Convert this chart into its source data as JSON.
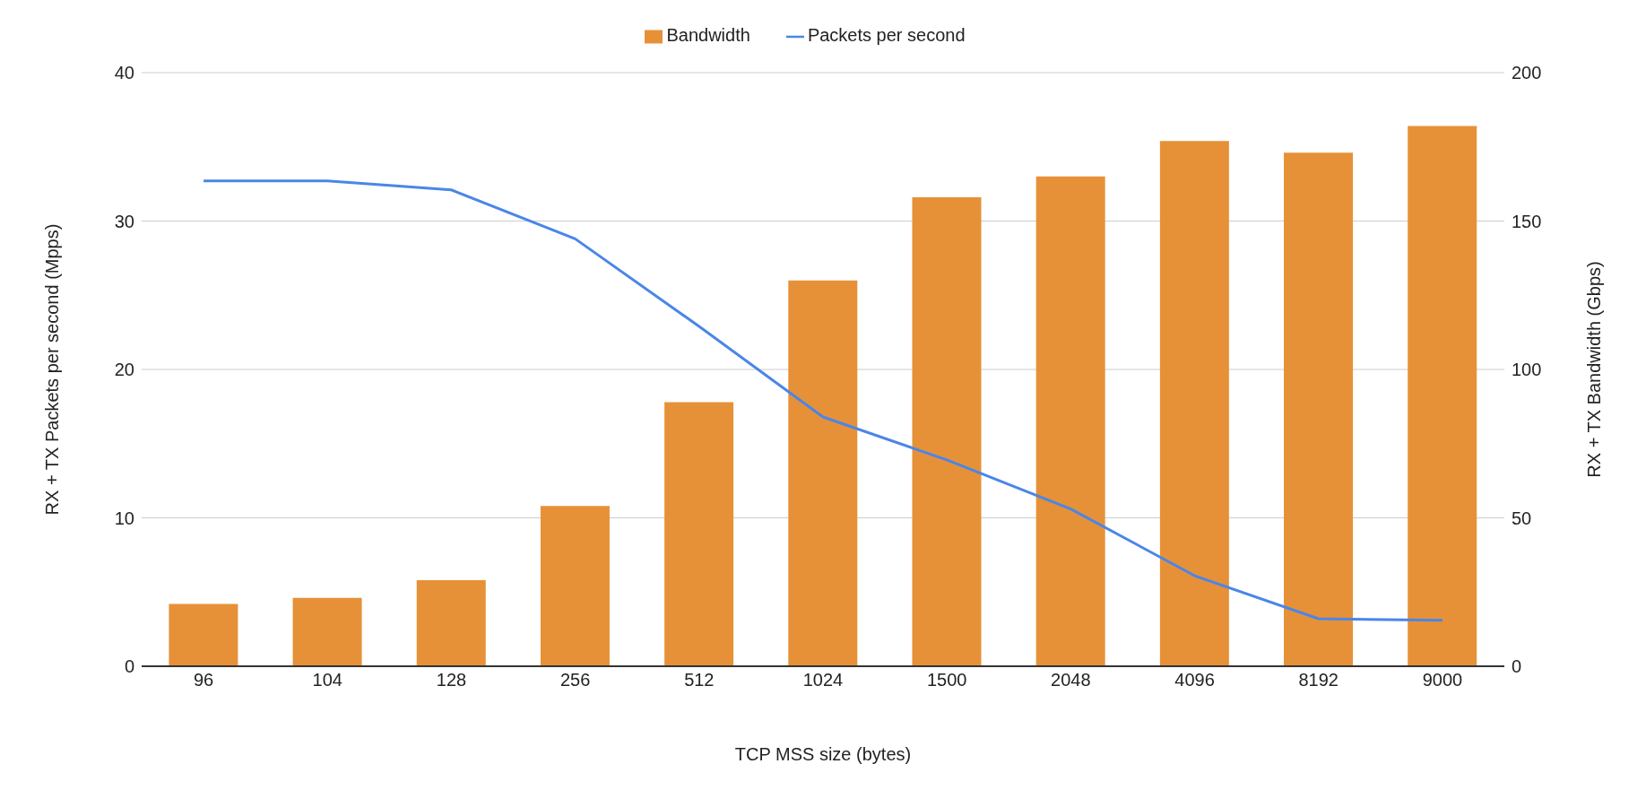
{
  "chart_data": {
    "type": "bar",
    "xlabel": "TCP MSS size (bytes)",
    "ylabel": "RX + TX Packets per second (Mpps)",
    "y2label": "RX + TX Bandwidth (Gbps)",
    "categories": [
      "96",
      "104",
      "128",
      "256",
      "512",
      "1024",
      "1500",
      "2048",
      "4096",
      "8192",
      "9000"
    ],
    "series": [
      {
        "name": "Bandwidth",
        "axis": "y2",
        "color": "#e69138",
        "values": [
          21,
          23,
          29,
          54,
          89,
          130,
          158,
          165,
          177,
          173,
          182
        ]
      },
      {
        "name": "Packets per second",
        "type": "line",
        "axis": "y",
        "color": "#4a86e8",
        "values": [
          32.7,
          32.7,
          32.1,
          28.8,
          22.9,
          16.8,
          13.9,
          10.6,
          6.1,
          3.2,
          3.1
        ]
      }
    ],
    "ylim": [
      0,
      40
    ],
    "yticks": [
      0,
      10,
      20,
      30,
      40
    ],
    "y2lim": [
      0,
      200
    ],
    "y2ticks": [
      0,
      50,
      100,
      150,
      200
    ],
    "grid": "y",
    "legend": "top",
    "marker": "none",
    "line_style": "solid"
  }
}
